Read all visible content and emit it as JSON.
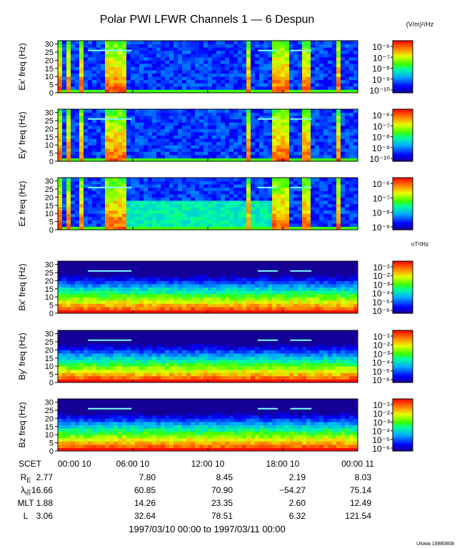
{
  "title": "Polar PWI LFWR Channels 1 — 6 Despun",
  "unit_electric": "(V/m)²/Hz",
  "unit_magnetic": "nT²/Hz",
  "footer_range": "1997/03/10 00:00 to 1997/03/11 00:00",
  "credit": "UIowa 19980808",
  "chart_data": {
    "type": "heatmap",
    "x_ticks": [
      "00:00 10",
      "06:00 10",
      "12:00 10",
      "18:00 10",
      "00:00 11"
    ],
    "x_hours": [
      0,
      6,
      12,
      18,
      24
    ],
    "y_ticks": [
      0,
      5,
      10,
      15,
      20,
      25,
      30
    ],
    "ylim": [
      0,
      32
    ],
    "panels": [
      {
        "ylabel": "Ex' freq (Hz)",
        "cbar_labels": [
          "10⁻⁶",
          "10⁻⁷",
          "10⁻⁸",
          "10⁻⁹",
          "10⁻¹⁰"
        ],
        "cbar_range": [
          -10,
          -6
        ]
      },
      {
        "ylabel": "Ey' freq (Hz)",
        "cbar_labels": [
          "10⁻⁶",
          "10⁻⁷",
          "10⁻⁸",
          "10⁻⁹",
          "10⁻¹⁰"
        ],
        "cbar_range": [
          -10,
          -6
        ]
      },
      {
        "ylabel": "Ez freq (Hz)",
        "cbar_labels": [
          "10⁻⁶",
          "10⁻⁷",
          "10⁻⁸",
          "10⁻⁹"
        ],
        "cbar_range": [
          -9,
          -6
        ]
      },
      {
        "ylabel": "Bx' freq (Hz)",
        "cbar_labels": [
          "10⁻¹",
          "10⁻²",
          "10⁻³",
          "10⁻⁴",
          "10⁻⁵",
          "10⁻⁶"
        ],
        "cbar_range": [
          -6,
          -1
        ]
      },
      {
        "ylabel": "By' freq (Hz)",
        "cbar_labels": [
          "10⁻¹",
          "10⁻²",
          "10⁻³",
          "10⁻⁴",
          "10⁻⁵",
          "10⁻⁶"
        ],
        "cbar_range": [
          -6,
          -1
        ]
      },
      {
        "ylabel": "Bz freq (Hz)",
        "cbar_labels": [
          "10⁻¹",
          "10⁻²",
          "10⁻³",
          "10⁻⁴",
          "10⁻⁵",
          "10⁻⁶"
        ],
        "cbar_range": [
          -6,
          -1
        ]
      }
    ],
    "ephemeris": {
      "labels": [
        "SCET",
        "RE",
        "λm",
        "MLT",
        "L"
      ],
      "rows": [
        {
          "label": "R",
          "sub": "E",
          "values": [
            "2.77",
            "7.80",
            "8.45",
            "2.19",
            "8.03"
          ]
        },
        {
          "label": "λ",
          "sub": "m",
          "values": [
            "−16.66",
            "60.85",
            "70.90",
            "−54.27",
            "75.14"
          ]
        },
        {
          "label": "MLT",
          "sub": "",
          "values": [
            "1.88",
            "14.26",
            "23.35",
            "2.60",
            "12.49"
          ]
        },
        {
          "label": "L",
          "sub": "",
          "values": [
            "3.06",
            "32.64",
            "78.51",
            "6.32",
            "121.54"
          ]
        }
      ]
    }
  }
}
